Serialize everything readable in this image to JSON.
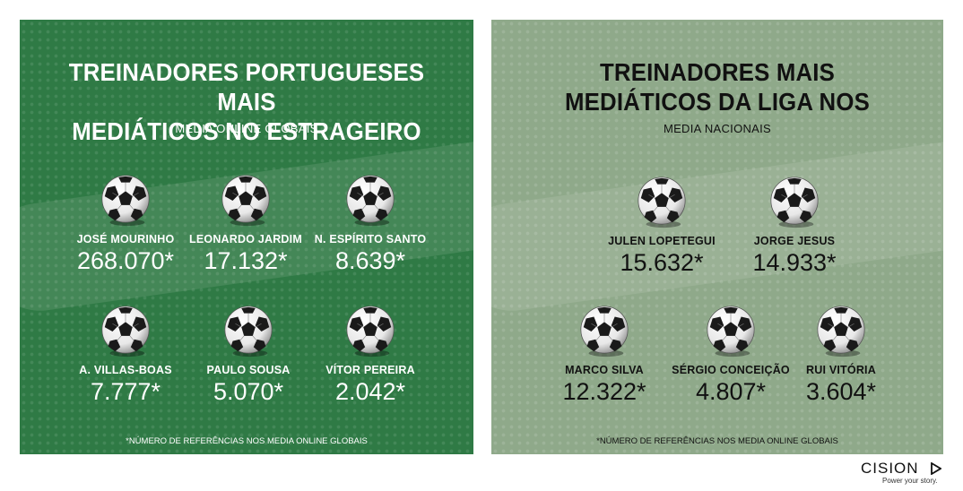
{
  "left_panel": {
    "title_line1": "TREINADORES PORTUGUESES MAIS",
    "title_line2": "MEDIÁTICOS NO ESTRAGEIRO",
    "subtitle": "MEDIA ONLINE GLOBAIS",
    "coaches": [
      {
        "name": "JOSÉ MOURINHO",
        "value": "268.070*"
      },
      {
        "name": "LEONARDO JARDIM",
        "value": "17.132*"
      },
      {
        "name": "N. ESPÍRITO SANTO",
        "value": "8.639*"
      },
      {
        "name": "A. VILLAS-BOAS",
        "value": "7.777*"
      },
      {
        "name": "PAULO SOUSA",
        "value": "5.070*"
      },
      {
        "name": "VÍTOR PEREIRA",
        "value": "2.042*"
      }
    ],
    "footnote": "*NÚMERO DE REFERÊNCIAS NOS MEDIA ONLINE GLOBAIS"
  },
  "right_panel": {
    "title_line1": "TREINADORES MAIS",
    "title_line2": "MEDIÁTICOS DA LIGA NOS",
    "subtitle": "MEDIA NACIONAIS",
    "coaches": [
      {
        "name": "JULEN LOPETEGUI",
        "value": "15.632*"
      },
      {
        "name": "JORGE JESUS",
        "value": "14.933*"
      },
      {
        "name": "MARCO SILVA",
        "value": "12.322*"
      },
      {
        "name": "SÉRGIO CONCEIÇÃO",
        "value": "4.807*"
      },
      {
        "name": "RUI VITÓRIA",
        "value": "3.604*"
      }
    ],
    "footnote": "*NÚMERO DE REFERÊNCIAS NOS MEDIA ONLINE GLOBAIS"
  },
  "brand": {
    "logo": "CISION",
    "tagline": "Power your story."
  },
  "colors": {
    "left_bg": "#2f7a45",
    "right_bg": "#8fa98a"
  },
  "icons": {
    "ball": "soccer-ball-icon",
    "logo_mark": "cision-play-mark-icon"
  }
}
